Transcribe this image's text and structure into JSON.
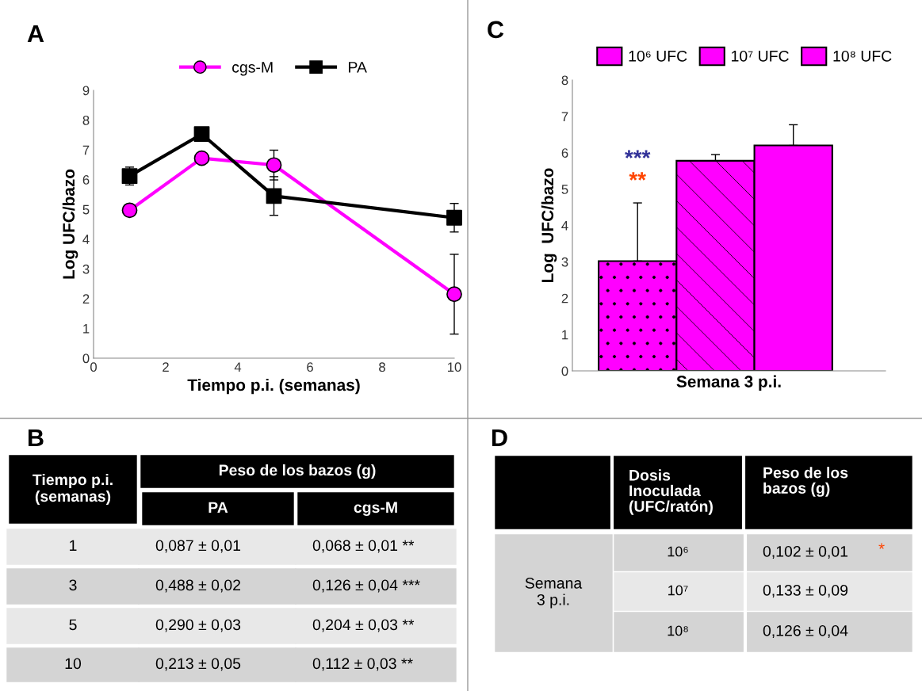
{
  "chart_data": [
    {
      "type": "line",
      "title": "A",
      "xlabel": "Tiempo p.i. (semanas)",
      "ylabel": "Log UFC/bazo",
      "xlim": [
        0,
        10
      ],
      "xticks": [
        0,
        2,
        4,
        6,
        8,
        10
      ],
      "ylim": [
        0,
        9
      ],
      "yticks": [
        0,
        1,
        2,
        3,
        4,
        5,
        6,
        7,
        8,
        9
      ],
      "legend": "top",
      "line_style": "solid",
      "series": [
        {
          "name": "cgs-M",
          "color": "#ff00ff",
          "marker": "circle",
          "x": [
            1,
            3,
            5,
            10
          ],
          "values": [
            4.97,
            6.72,
            6.49,
            2.15
          ],
          "errors": [
            null,
            null,
            0.5,
            1.34
          ]
        },
        {
          "name": "PA",
          "color": "#000000",
          "marker": "square",
          "x": [
            1,
            3,
            5,
            10
          ],
          "values": [
            6.12,
            7.53,
            5.45,
            4.72
          ],
          "errors": [
            0.3,
            0.1,
            0.65,
            0.48
          ]
        }
      ]
    },
    {
      "type": "bar",
      "title": "C",
      "xlabel": "Semana 3 p.i.",
      "ylabel": "Log  UFC/bazo",
      "categories": [
        null
      ],
      "ylim": [
        0,
        8
      ],
      "yticks": [
        0,
        1,
        2,
        3,
        4,
        5,
        6,
        7,
        8
      ],
      "legend": "top",
      "tick_labels": "y",
      "series": [
        {
          "name": "10⁶ UFC",
          "color": "#ff00ff",
          "values": [
            3.02
          ],
          "errors": [
            [
              3.02,
              4.62
            ]
          ]
        },
        {
          "name": "10⁷ UFC",
          "color": "#ff00ff",
          "values": [
            5.78
          ],
          "errors": [
            [
              5.78,
              5.95
            ]
          ]
        },
        {
          "name": "10⁸ UFC",
          "color": "#ff00ff",
          "values": [
            6.2
          ],
          "errors": [
            [
              6.2,
              6.77
            ]
          ]
        }
      ],
      "annotations": [
        "***",
        "**"
      ]
    },
    {
      "type": "other",
      "title": "B",
      "annotations": [
        "Tiempo p.i.\n(semanas)",
        "Peso de los bazos (g)",
        "PA",
        "cgs-M",
        "1",
        "0,087 ± 0,01",
        "0,068 ± 0,01 **",
        "3",
        "0,488 ± 0,02",
        "0,126 ± 0,04 ***",
        "5",
        "0,290 ± 0,03",
        "0,204 ± 0,03 **",
        "10",
        "0,213 ± 0,05",
        "0,112 ± 0,03 **"
      ]
    },
    {
      "type": "other",
      "title": "D",
      "annotations": [
        "Dosis\nInoculada\n(UFC/ratón)",
        "Peso de los\nbazos (g)",
        "Semana\n3 p.i.",
        "10⁶",
        "0,102 ± 0,01",
        "*",
        "10⁷",
        "0,133 ± 0,09",
        "10⁸",
        "0,126 ± 0,04"
      ]
    }
  ]
}
